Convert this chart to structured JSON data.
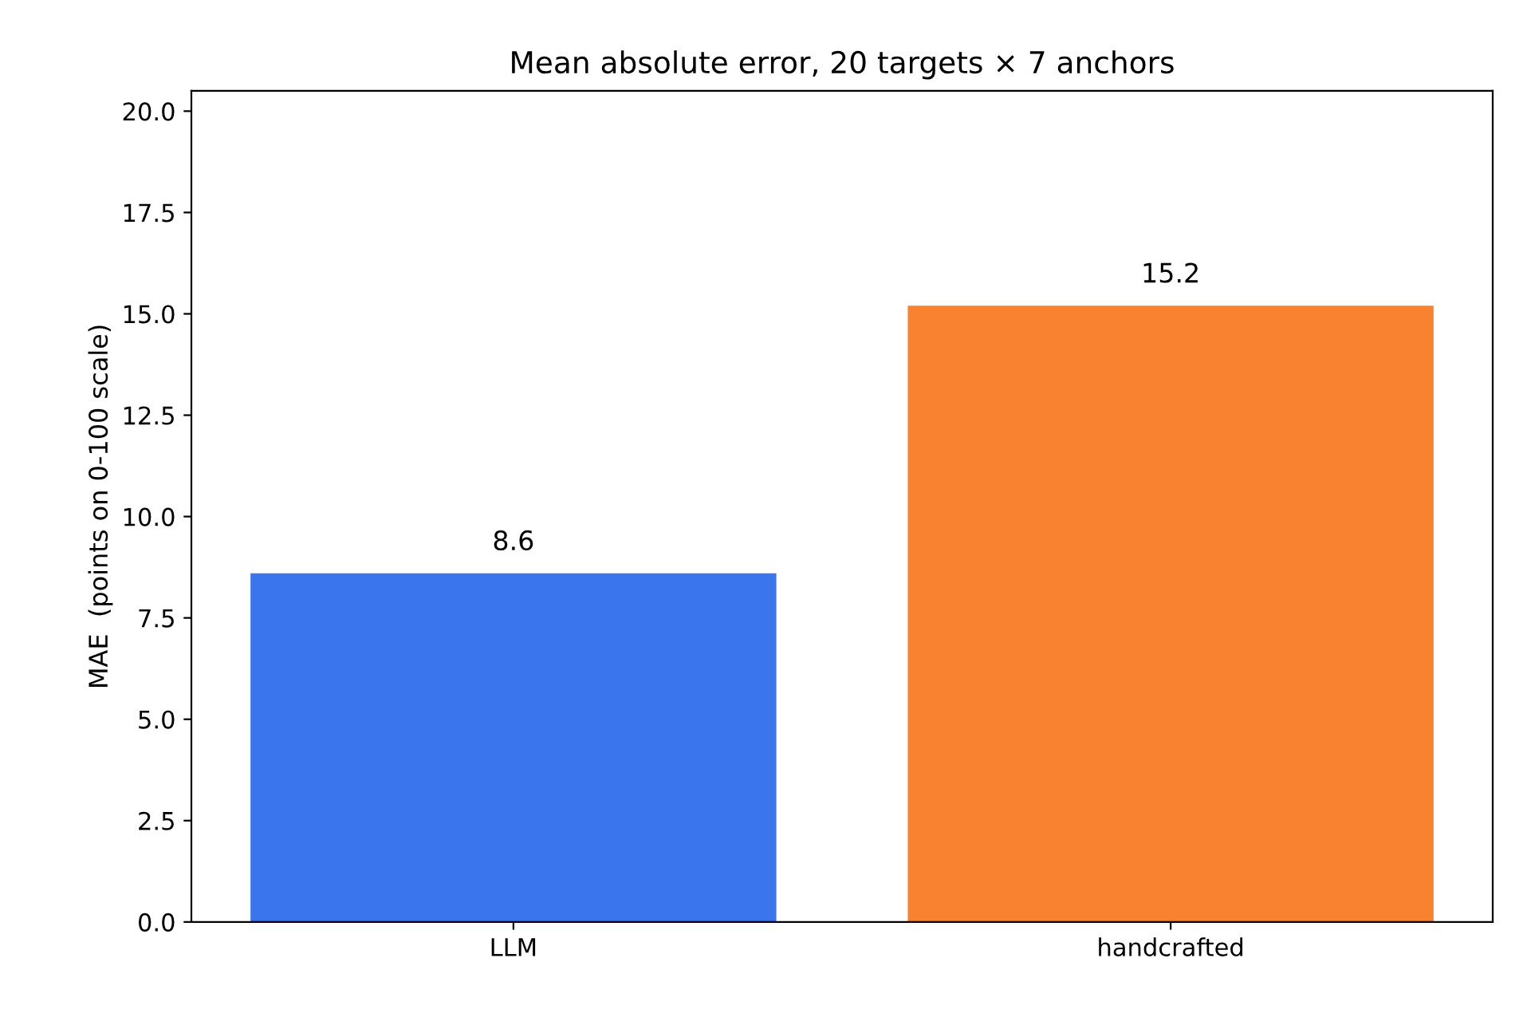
{
  "chart_data": {
    "type": "bar",
    "title": "Mean absolute error, 20 targets × 7 anchors",
    "ylabel": "MAE  (points on 0-100 scale)",
    "categories": [
      "LLM",
      "handcrafted"
    ],
    "values": [
      8.6,
      15.2
    ],
    "colors": [
      "#3b75ed",
      "#f8822f"
    ],
    "ylim": [
      0,
      20.5
    ],
    "yticks": [
      {
        "value": 0,
        "label": "0.0"
      },
      2.5,
      {
        "value": 5,
        "label": "5.0"
      },
      7.5,
      {
        "value": 10,
        "label": "10.0"
      },
      12.5,
      {
        "value": 15,
        "label": "15.0"
      },
      17.5,
      {
        "value": 20,
        "label": "20.0"
      }
    ],
    "data_labels": true
  }
}
